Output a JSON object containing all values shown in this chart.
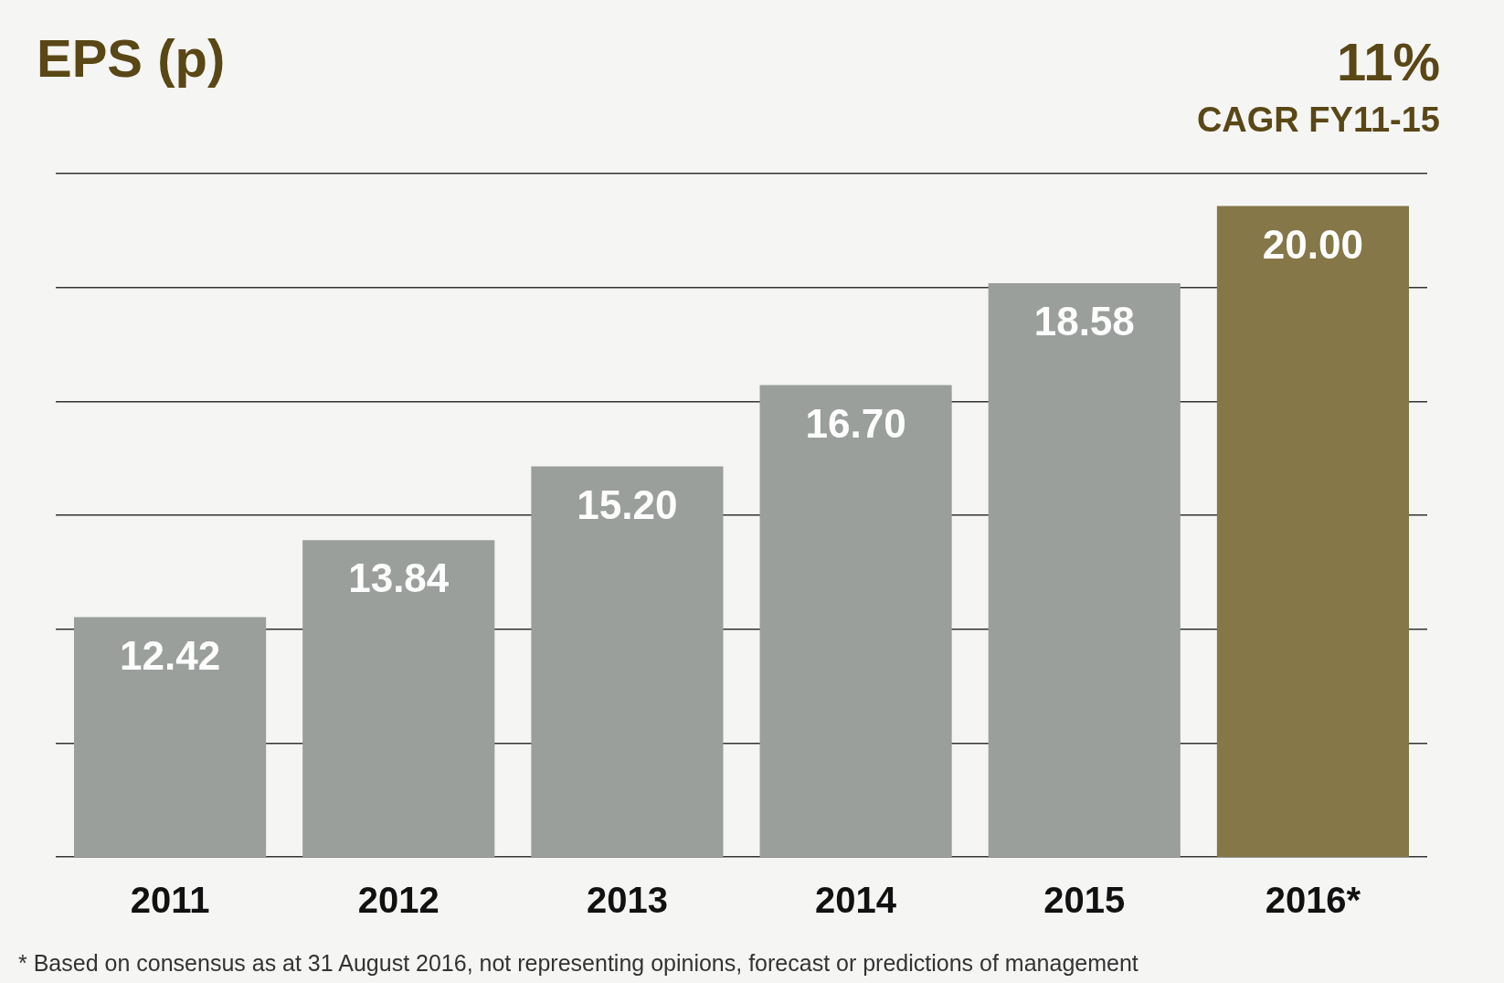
{
  "chart_data": {
    "type": "bar",
    "title": "EPS (p)",
    "annotations": [
      "11%",
      "CAGR FY11-15",
      "* Based on consensus as at 31 August 2016, not representing opinions, forecast or predictions of management"
    ],
    "categories": [
      "2011",
      "2012",
      "2013",
      "2014",
      "2015",
      "2016*"
    ],
    "values": [
      12.42,
      13.84,
      15.2,
      16.7,
      18.58,
      20.0
    ],
    "colors": [
      "#9a9f9c",
      "#9a9f9c",
      "#9a9f9c",
      "#9a9f9c",
      "#9a9f9c",
      "#857747"
    ],
    "value_labels": [
      "12.42",
      "13.84",
      "15.20",
      "16.70",
      "18.58",
      "20.00"
    ],
    "ylim": [
      8,
      20.6
    ],
    "yticks": [
      {
        "value": 8,
        "label": null
      },
      {
        "value": 10.1,
        "label": null
      },
      {
        "value": 12.2,
        "label": null
      },
      {
        "value": 14.3,
        "label": null
      },
      {
        "value": 16.4,
        "label": null
      },
      {
        "value": 18.5,
        "label": null
      },
      {
        "value": 20.6,
        "label": null
      }
    ],
    "grid": "y",
    "tick_labels": "x",
    "legend": false
  }
}
